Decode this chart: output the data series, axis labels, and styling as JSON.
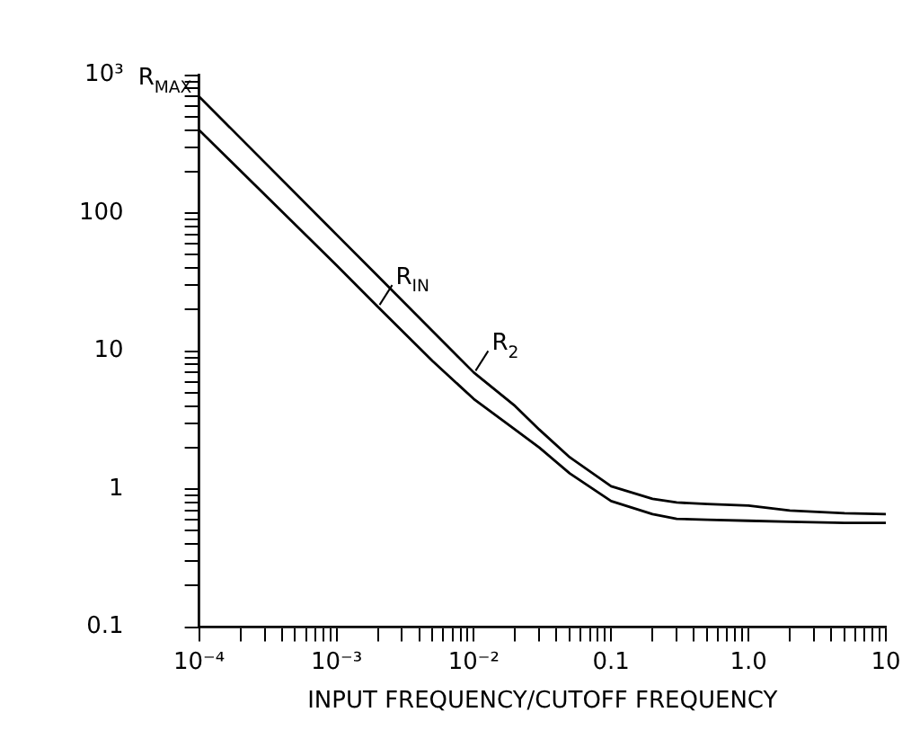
{
  "chart_data": {
    "type": "line",
    "xlabel": "INPUT FREQUENCY/CUTOFF FREQUENCY",
    "ylabel": "R$_{MAX}$",
    "log": "xy",
    "grid": false,
    "legend": "center",
    "marker": "none",
    "line_style": "solid",
    "x": [
      0.0001,
      0.001,
      0.002,
      0.005,
      0.01,
      0.02,
      0.03,
      0.05,
      0.1,
      0.2,
      0.3,
      0.5,
      1,
      2,
      5,
      10
    ],
    "series": [
      {
        "name": "R$_{IN}$",
        "color": "#000000",
        "values": [
          400,
          42,
          21,
          8.5,
          4.5,
          2.7,
          2.0,
          1.3,
          0.82,
          0.66,
          0.61,
          0.6,
          0.59,
          0.58,
          0.57,
          0.57
        ]
      },
      {
        "name": "R$_{2}$",
        "color": "#000000",
        "values": [
          700,
          70,
          35,
          14,
          7,
          4.0,
          2.7,
          1.7,
          1.05,
          0.85,
          0.8,
          0.78,
          0.76,
          0.7,
          0.67,
          0.66
        ]
      }
    ],
    "xlim": [
      0.0001,
      10
    ],
    "ylim": [
      0.1,
      1000
    ],
    "xticks": [
      {
        "value": 0.0001,
        "label": "10⁻⁴"
      },
      {
        "value": 0.0002,
        "label": null
      },
      {
        "value": 0.0003,
        "label": null
      },
      {
        "value": 0.0004,
        "label": null
      },
      {
        "value": 0.0005,
        "label": null
      },
      {
        "value": 0.0006,
        "label": null
      },
      {
        "value": 0.0007,
        "label": null
      },
      {
        "value": 0.0008,
        "label": null
      },
      {
        "value": 0.0009,
        "label": null
      },
      {
        "value": 0.001,
        "label": "10⁻³"
      },
      {
        "value": 0.002,
        "label": null
      },
      {
        "value": 0.003,
        "label": null
      },
      {
        "value": 0.004,
        "label": null
      },
      {
        "value": 0.005,
        "label": null
      },
      {
        "value": 0.006,
        "label": null
      },
      {
        "value": 0.007,
        "label": null
      },
      {
        "value": 0.008,
        "label": null
      },
      {
        "value": 0.009,
        "label": null
      },
      {
        "value": 0.01,
        "label": "10⁻²"
      },
      {
        "value": 0.02,
        "label": null
      },
      {
        "value": 0.03,
        "label": null
      },
      {
        "value": 0.04,
        "label": null
      },
      {
        "value": 0.05,
        "label": null
      },
      {
        "value": 0.06,
        "label": null
      },
      {
        "value": 0.07,
        "label": null
      },
      {
        "value": 0.08,
        "label": null
      },
      {
        "value": 0.09,
        "label": null
      },
      {
        "value": 0.1,
        "label": "0.1"
      },
      {
        "value": 0.2,
        "label": null
      },
      {
        "value": 0.3,
        "label": null
      },
      {
        "value": 0.4,
        "label": null
      },
      {
        "value": 0.5,
        "label": null
      },
      {
        "value": 0.6,
        "label": null
      },
      {
        "value": 0.7,
        "label": null
      },
      {
        "value": 0.8,
        "label": null
      },
      {
        "value": 0.9,
        "label": null
      },
      {
        "value": 1,
        "label": "1.0"
      },
      {
        "value": 2,
        "label": null
      },
      {
        "value": 3,
        "label": null
      },
      {
        "value": 4,
        "label": null
      },
      {
        "value": 5,
        "label": null
      },
      {
        "value": 6,
        "label": null
      },
      {
        "value": 7,
        "label": null
      },
      {
        "value": 8,
        "label": null
      },
      {
        "value": 9,
        "label": null
      },
      {
        "value": 10,
        "label": "10"
      }
    ],
    "yticks": [
      {
        "value": 0.1,
        "label": "0.1"
      },
      {
        "value": 0.2,
        "label": null
      },
      {
        "value": 0.3,
        "label": null
      },
      {
        "value": 0.4,
        "label": null
      },
      {
        "value": 0.5,
        "label": null
      },
      {
        "value": 0.6,
        "label": null
      },
      {
        "value": 0.7,
        "label": null
      },
      {
        "value": 0.8,
        "label": null
      },
      {
        "value": 0.9,
        "label": null
      },
      {
        "value": 1,
        "label": "1"
      },
      {
        "value": 2,
        "label": null
      },
      {
        "value": 3,
        "label": null
      },
      {
        "value": 4,
        "label": null
      },
      {
        "value": 5,
        "label": null
      },
      {
        "value": 6,
        "label": null
      },
      {
        "value": 7,
        "label": null
      },
      {
        "value": 8,
        "label": null
      },
      {
        "value": 9,
        "label": null
      },
      {
        "value": 10,
        "label": "10"
      },
      {
        "value": 20,
        "label": null
      },
      {
        "value": 30,
        "label": null
      },
      {
        "value": 40,
        "label": null
      },
      {
        "value": 50,
        "label": null
      },
      {
        "value": 60,
        "label": null
      },
      {
        "value": 70,
        "label": null
      },
      {
        "value": 80,
        "label": null
      },
      {
        "value": 90,
        "label": null
      },
      {
        "value": 100,
        "label": "100"
      },
      {
        "value": 200,
        "label": null
      },
      {
        "value": 300,
        "label": null
      },
      {
        "value": 400,
        "label": null
      },
      {
        "value": 500,
        "label": null
      },
      {
        "value": 600,
        "label": null
      },
      {
        "value": 700,
        "label": null
      },
      {
        "value": 800,
        "label": null
      },
      {
        "value": 900,
        "label": null
      },
      {
        "value": 1000,
        "label": "10³"
      }
    ]
  }
}
